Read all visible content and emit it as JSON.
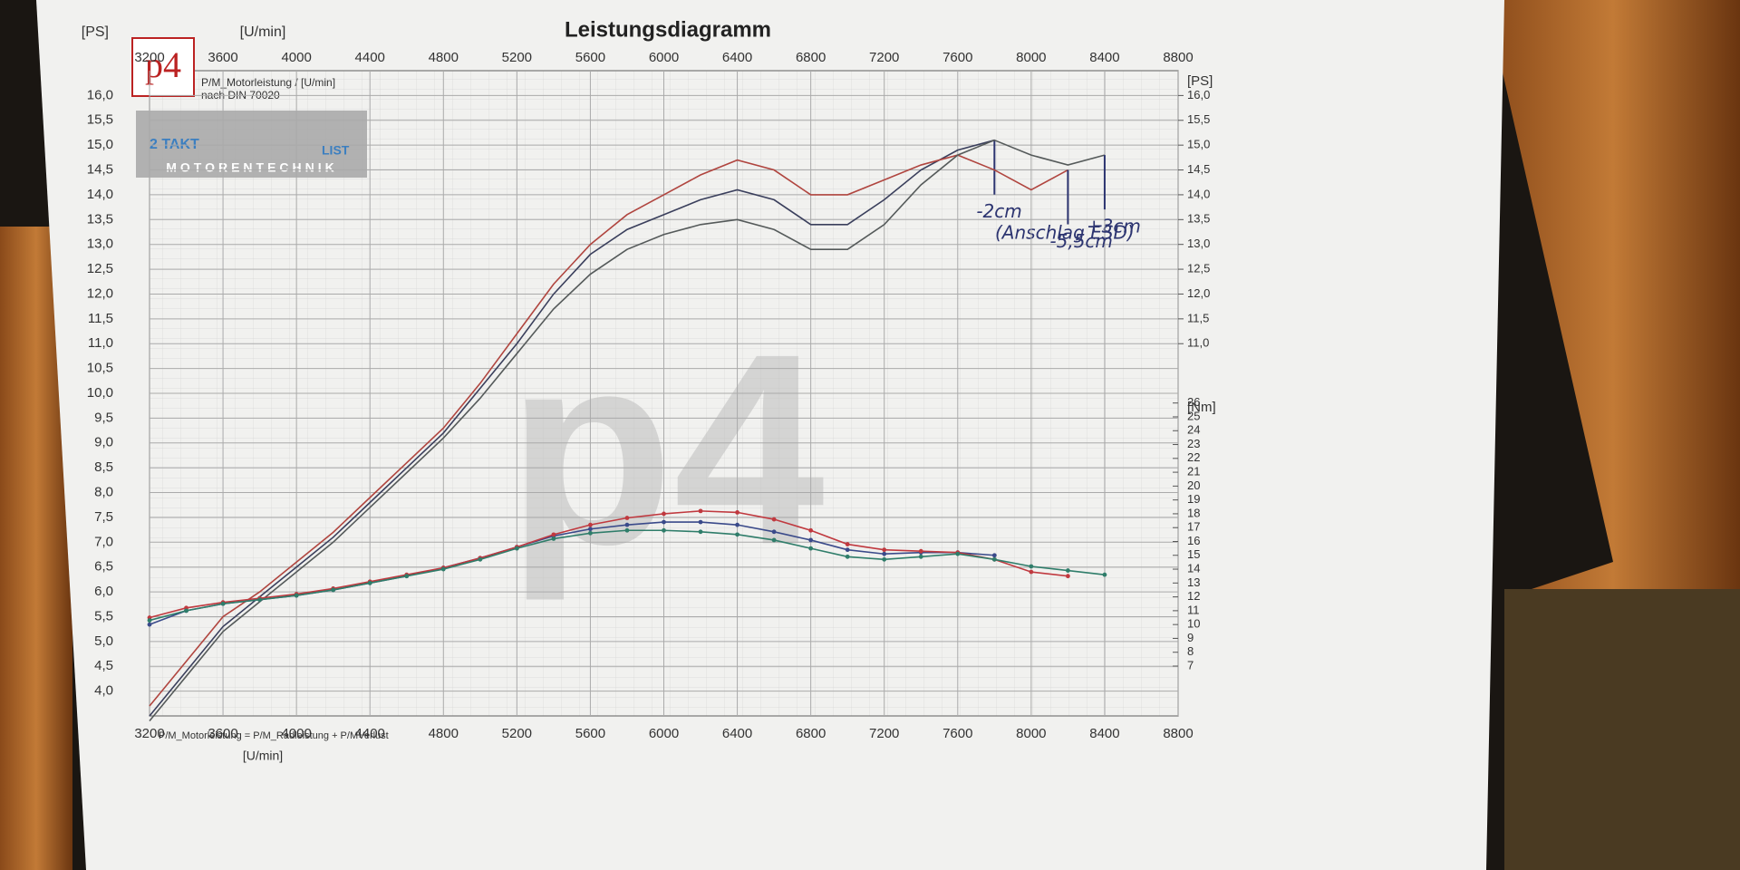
{
  "chart_data": {
    "type": "line",
    "title": "Leistungsdiagramm",
    "x_label": "[U/min]",
    "y_label": "[PS]",
    "y_right_label": "[PS]",
    "y2_label": "[Nm]",
    "subtitle": "P/M_Motorleistung / [U/min]",
    "note": "nach DIN 70020",
    "footer": "P/M_Motorleistung = P/M_Radleistung + P/MVerlust",
    "logo": "p4",
    "watermark": "p4",
    "badge": [
      "2 TAKT",
      "LIST",
      "MOTORENTECHNIK"
    ],
    "annotation": "(Anschlag ESD)",
    "x": [
      3200,
      3400,
      3600,
      3800,
      4000,
      4200,
      4400,
      4600,
      4800,
      5000,
      5200,
      5400,
      5600,
      5800,
      6000,
      6200,
      6400,
      6600,
      6800,
      7000,
      7200,
      7400,
      7600,
      7800,
      8000,
      8200,
      8400
    ],
    "xlim": [
      3200,
      8800
    ],
    "xticks": [
      3200,
      3600,
      4000,
      4400,
      4800,
      5200,
      5600,
      6000,
      6400,
      6800,
      7200,
      7600,
      8000,
      8400,
      8800
    ],
    "ylim": [
      3.5,
      16.5
    ],
    "yticks": [
      {
        "value": 4,
        "label": "4,0"
      },
      {
        "value": 4.5,
        "label": "4,5"
      },
      {
        "value": 5,
        "label": "5,0"
      },
      {
        "value": 5.5,
        "label": "5,5"
      },
      {
        "value": 6,
        "label": "6,0"
      },
      {
        "value": 6.5,
        "label": "6,5"
      },
      {
        "value": 7,
        "label": "7,0"
      },
      {
        "value": 7.5,
        "label": "7,5"
      },
      {
        "value": 8,
        "label": "8,0"
      },
      {
        "value": 8.5,
        "label": "8,5"
      },
      {
        "value": 9,
        "label": "9,0"
      },
      {
        "value": 9.5,
        "label": "9,5"
      },
      {
        "value": 10,
        "label": "10,0"
      },
      {
        "value": 10.5,
        "label": "10,5"
      },
      {
        "value": 11,
        "label": "11,0"
      },
      {
        "value": 11.5,
        "label": "11,5"
      },
      {
        "value": 12,
        "label": "12,0"
      },
      {
        "value": 12.5,
        "label": "12,5"
      },
      {
        "value": 13,
        "label": "13,0"
      },
      {
        "value": 13.5,
        "label": "13,5"
      },
      {
        "value": 14,
        "label": "14,0"
      },
      {
        "value": 14.5,
        "label": "14,5"
      },
      {
        "value": 15,
        "label": "15,0"
      },
      {
        "value": 15.5,
        "label": "15,5"
      },
      {
        "value": 16,
        "label": "16,0"
      }
    ],
    "y_right_ticks": [
      {
        "value": 11,
        "label": "11,0"
      },
      {
        "value": 11.5,
        "label": "11,5"
      },
      {
        "value": 12,
        "label": "12,0"
      },
      {
        "value": 12.5,
        "label": "12,5"
      },
      {
        "value": 13,
        "label": "13,0"
      },
      {
        "value": 13.5,
        "label": "13,5"
      },
      {
        "value": 14,
        "label": "14,0"
      },
      {
        "value": 14.5,
        "label": "14,5"
      },
      {
        "value": 15,
        "label": "15,0"
      },
      {
        "value": 15.5,
        "label": "15,5"
      },
      {
        "value": 16,
        "label": "16,0"
      }
    ],
    "y2lim": [
      3.4,
      50
    ],
    "y2ticks": [
      7,
      8,
      9,
      10,
      11,
      12,
      13,
      14,
      15,
      16,
      17,
      18,
      19,
      20,
      21,
      22,
      23,
      24,
      25,
      26
    ],
    "grid": true,
    "series": [
      {
        "name": "-2cm",
        "color": "#3a3f5c",
        "values": [
          3.5,
          4.4,
          5.3,
          5.9,
          6.5,
          7.1,
          7.8,
          8.5,
          9.2,
          10.1,
          11.0,
          12.0,
          12.8,
          13.3,
          13.6,
          13.9,
          14.1,
          13.9,
          13.4,
          13.4,
          13.9,
          14.5,
          14.9,
          15.1,
          null,
          null,
          null
        ]
      },
      {
        "name": "-5,5cm",
        "color": "#b0453f",
        "values": [
          3.7,
          4.6,
          5.5,
          6.0,
          6.6,
          7.2,
          7.9,
          8.6,
          9.3,
          10.2,
          11.2,
          12.2,
          13.0,
          13.6,
          14.0,
          14.4,
          14.7,
          14.5,
          14.0,
          14.0,
          14.3,
          14.6,
          14.8,
          14.5,
          14.1,
          14.5,
          null
        ]
      },
      {
        "name": "+3cm",
        "color": "#555a5a",
        "values": [
          3.4,
          4.3,
          5.2,
          5.8,
          6.4,
          7.0,
          7.7,
          8.4,
          9.1,
          9.9,
          10.8,
          11.7,
          12.4,
          12.9,
          13.2,
          13.4,
          13.5,
          13.3,
          12.9,
          12.9,
          13.4,
          14.2,
          14.8,
          15.1,
          14.8,
          14.6,
          14.8
        ]
      },
      {
        "color": "#3a4a8a",
        "axis": "y2",
        "values": [
          10.0,
          11.0,
          11.5,
          11.8,
          12.1,
          12.5,
          13.0,
          13.5,
          14.1,
          14.8,
          15.6,
          16.4,
          16.9,
          17.2,
          17.4,
          17.4,
          17.2,
          16.7,
          16.1,
          15.4,
          15.1,
          15.2,
          15.2,
          15.0,
          null,
          null,
          null
        ]
      },
      {
        "color": "#c0393f",
        "axis": "y2",
        "values": [
          10.5,
          11.2,
          11.6,
          11.9,
          12.2,
          12.6,
          13.1,
          13.6,
          14.1,
          14.8,
          15.6,
          16.5,
          17.2,
          17.7,
          18.0,
          18.2,
          18.1,
          17.6,
          16.8,
          15.8,
          15.4,
          15.3,
          15.2,
          14.7,
          13.8,
          13.5,
          null
        ]
      },
      {
        "color": "#2f7d6a",
        "axis": "y2",
        "values": [
          10.3,
          11.0,
          11.5,
          11.8,
          12.1,
          12.5,
          13.0,
          13.5,
          14.0,
          14.7,
          15.5,
          16.2,
          16.6,
          16.8,
          16.8,
          16.7,
          16.5,
          16.1,
          15.5,
          14.9,
          14.7,
          14.9,
          15.1,
          14.7,
          14.2,
          13.9,
          13.6
        ]
      }
    ]
  }
}
